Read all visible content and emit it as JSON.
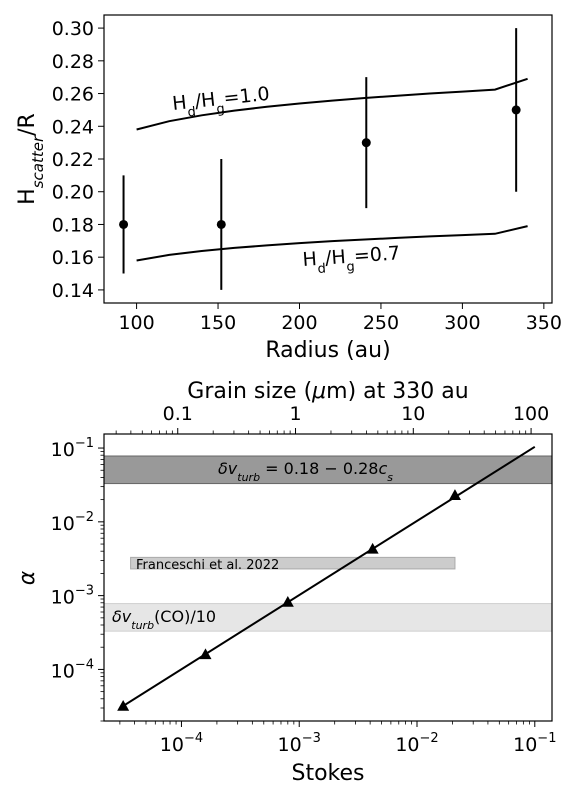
{
  "chart_data": [
    {
      "type": "scatter",
      "xlabel": "Radius (au)",
      "ylabel_main": "H",
      "ylabel_sub": "scatter",
      "ylabel_tail": "/R",
      "xlim": [
        80,
        355
      ],
      "ylim": [
        0.132,
        0.308
      ],
      "x_ticks": [
        100,
        150,
        200,
        250,
        300,
        350
      ],
      "y_ticks": [
        0.14,
        0.16,
        0.18,
        0.2,
        0.22,
        0.24,
        0.26,
        0.28,
        0.3
      ],
      "y_tick_labels": [
        "0.14",
        "0.16",
        "0.18",
        "0.20",
        "0.22",
        "0.24",
        "0.26",
        "0.28",
        "0.30"
      ],
      "points": [
        {
          "x": 92,
          "y": 0.18,
          "ylow": 0.15,
          "yhigh": 0.21
        },
        {
          "x": 152,
          "y": 0.18,
          "ylow": 0.14,
          "yhigh": 0.22
        },
        {
          "x": 241,
          "y": 0.23,
          "ylow": 0.19,
          "yhigh": 0.27
        },
        {
          "x": 333,
          "y": 0.25,
          "ylow": 0.2,
          "yhigh": 0.3
        }
      ],
      "curves": [
        {
          "label_main": "H",
          "label_sub1": "d",
          "label_mid": "/H",
          "label_sub2": "g",
          "label_tail": "=1.0",
          "x": [
            100,
            120,
            140,
            160,
            180,
            200,
            220,
            240,
            260,
            280,
            300,
            320,
            340
          ],
          "y": [
            0.238,
            0.2431,
            0.2467,
            0.2496,
            0.2519,
            0.2539,
            0.2557,
            0.2573,
            0.2587,
            0.26,
            0.2612,
            0.2624,
            0.269
          ]
        },
        {
          "label_main": "H",
          "label_sub1": "d",
          "label_mid": "/H",
          "label_sub2": "g",
          "label_tail": "=0.7",
          "x": [
            100,
            120,
            140,
            160,
            180,
            200,
            220,
            240,
            260,
            280,
            300,
            320,
            340
          ],
          "y": [
            0.158,
            0.1614,
            0.1638,
            0.1657,
            0.1672,
            0.1686,
            0.1698,
            0.1708,
            0.1718,
            0.1727,
            0.1735,
            0.1743,
            0.179
          ]
        }
      ]
    },
    {
      "type": "line",
      "xscale": "log",
      "yscale": "log",
      "xlabel": "Stokes",
      "ylabel": "α",
      "top_xlabel_a": "Grain size (",
      "top_xlabel_mu": "μ",
      "top_xlabel_b": "m) at 330 au",
      "xlim": [
        2.2e-05,
        0.14
      ],
      "ylim": [
        2e-05,
        0.155
      ],
      "x_ticks": [
        {
          "value": 0.0001,
          "base": "10",
          "exp": "−4"
        },
        {
          "value": 0.001,
          "base": "10",
          "exp": "−3"
        },
        {
          "value": 0.01,
          "base": "10",
          "exp": "−2"
        },
        {
          "value": 0.1,
          "base": "10",
          "exp": "−1"
        }
      ],
      "y_ticks": [
        {
          "value": 0.0001,
          "base": "10",
          "exp": "−4"
        },
        {
          "value": 0.001,
          "base": "10",
          "exp": "−3"
        },
        {
          "value": 0.01,
          "base": "10",
          "exp": "−2"
        },
        {
          "value": 0.1,
          "base": "10",
          "exp": "−1"
        }
      ],
      "top_ticks": [
        {
          "label": "0.1",
          "stokes": 9.3e-05
        },
        {
          "label": "1",
          "stokes": 0.00093
        },
        {
          "label": "10",
          "stokes": 0.0093
        },
        {
          "label": "100",
          "stokes": 0.093
        }
      ],
      "line": {
        "x": [
          3.2e-05,
          0.1
        ],
        "y": [
          3.2e-05,
          0.104
        ]
      },
      "markers": [
        {
          "x": 3.2e-05,
          "y": 3.2e-05
        },
        {
          "x": 0.00016,
          "y": 0.00016
        },
        {
          "x": 0.0008,
          "y": 0.00082
        },
        {
          "x": 0.0042,
          "y": 0.0043
        },
        {
          "x": 0.021,
          "y": 0.023
        }
      ],
      "bands": [
        {
          "kind": "turb",
          "ymin": 0.033,
          "ymax": 0.078,
          "xmin": 2.2e-05,
          "xmax": 0.14,
          "color": "#999999",
          "edge": "#666666",
          "label_delta": "δ",
          "label_v": "v",
          "label_sub": "turb",
          "label_tail": " = 0.18 − 0.28",
          "label_c": "c",
          "label_csub": "s"
        },
        {
          "kind": "franceschi",
          "ymin": 0.0023,
          "ymax": 0.0033,
          "xmin": 3.7e-05,
          "xmax": 0.021,
          "color": "#cccccc",
          "edge": "#aaaaaa",
          "label": "Franceschi et al. 2022"
        },
        {
          "kind": "co",
          "ymin": 0.00033,
          "ymax": 0.00078,
          "xmin": 2.2e-05,
          "xmax": 0.14,
          "color": "#e6e6e6",
          "edge": "#cfcfcf",
          "label_delta": "δ",
          "label_v": "v",
          "label_sub": "turb",
          "label_tail": "(CO)/10"
        }
      ]
    }
  ]
}
